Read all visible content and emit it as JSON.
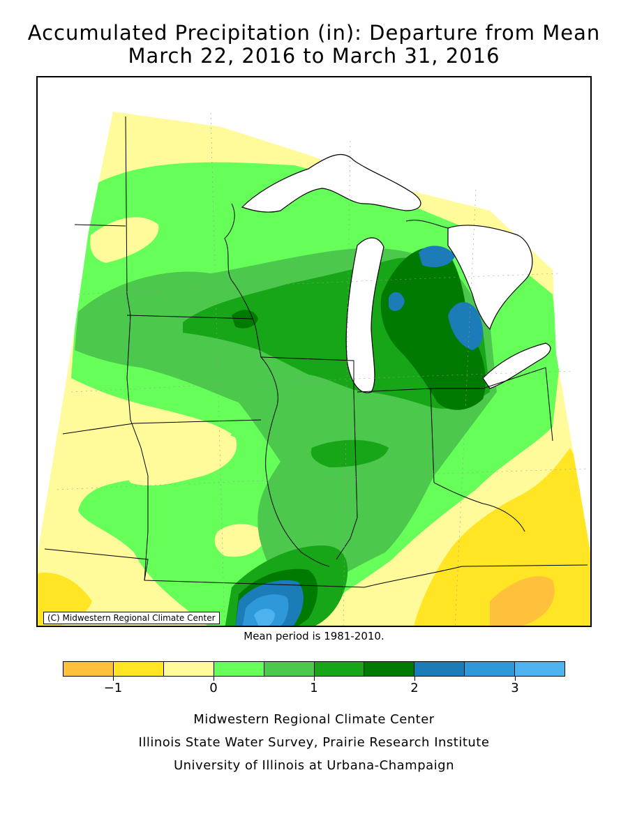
{
  "title": {
    "line1": "Accumulated Precipitation (in): Departure from Mean",
    "line2": "March 22, 2016 to March 31, 2016"
  },
  "map": {
    "region": "Midwest United States",
    "copyright": "(C) Midwestern Regional Climate Center",
    "notable_features": [
      "Lake Superior",
      "Lake Michigan",
      "Lake Huron",
      "Lake Erie"
    ]
  },
  "mean_period": "Mean period is 1981-2010.",
  "legend": {
    "bins": [
      {
        "range": "-1.5 to -1",
        "color": "#FFC03C"
      },
      {
        "range": "-1 to -0.5",
        "color": "#FFE524"
      },
      {
        "range": "-0.5 to 0",
        "color": "#FFFB9B"
      },
      {
        "range": "0 to 0.5",
        "color": "#66FF5A"
      },
      {
        "range": "0.5 to 1",
        "color": "#4CC84C"
      },
      {
        "range": "1 to 1.5",
        "color": "#17A617"
      },
      {
        "range": "1.5 to 2",
        "color": "#007A00"
      },
      {
        "range": "2 to 2.5",
        "color": "#1C7CB8"
      },
      {
        "range": "2.5 to 3",
        "color": "#2F98D8"
      },
      {
        "range": "3 to 3.5",
        "color": "#4DB2EE"
      }
    ],
    "ticks": [
      {
        "value": -1,
        "label": "−1"
      },
      {
        "value": 0,
        "label": "0"
      },
      {
        "value": 1,
        "label": "1"
      },
      {
        "value": 2,
        "label": "2"
      },
      {
        "value": 3,
        "label": "3"
      }
    ],
    "min": -1.5,
    "max": 3.5
  },
  "credits": [
    "Midwestern Regional Climate Center",
    "Illinois State Water Survey, Prairie Research Institute",
    "University of Illinois at Urbana-Champaign"
  ]
}
